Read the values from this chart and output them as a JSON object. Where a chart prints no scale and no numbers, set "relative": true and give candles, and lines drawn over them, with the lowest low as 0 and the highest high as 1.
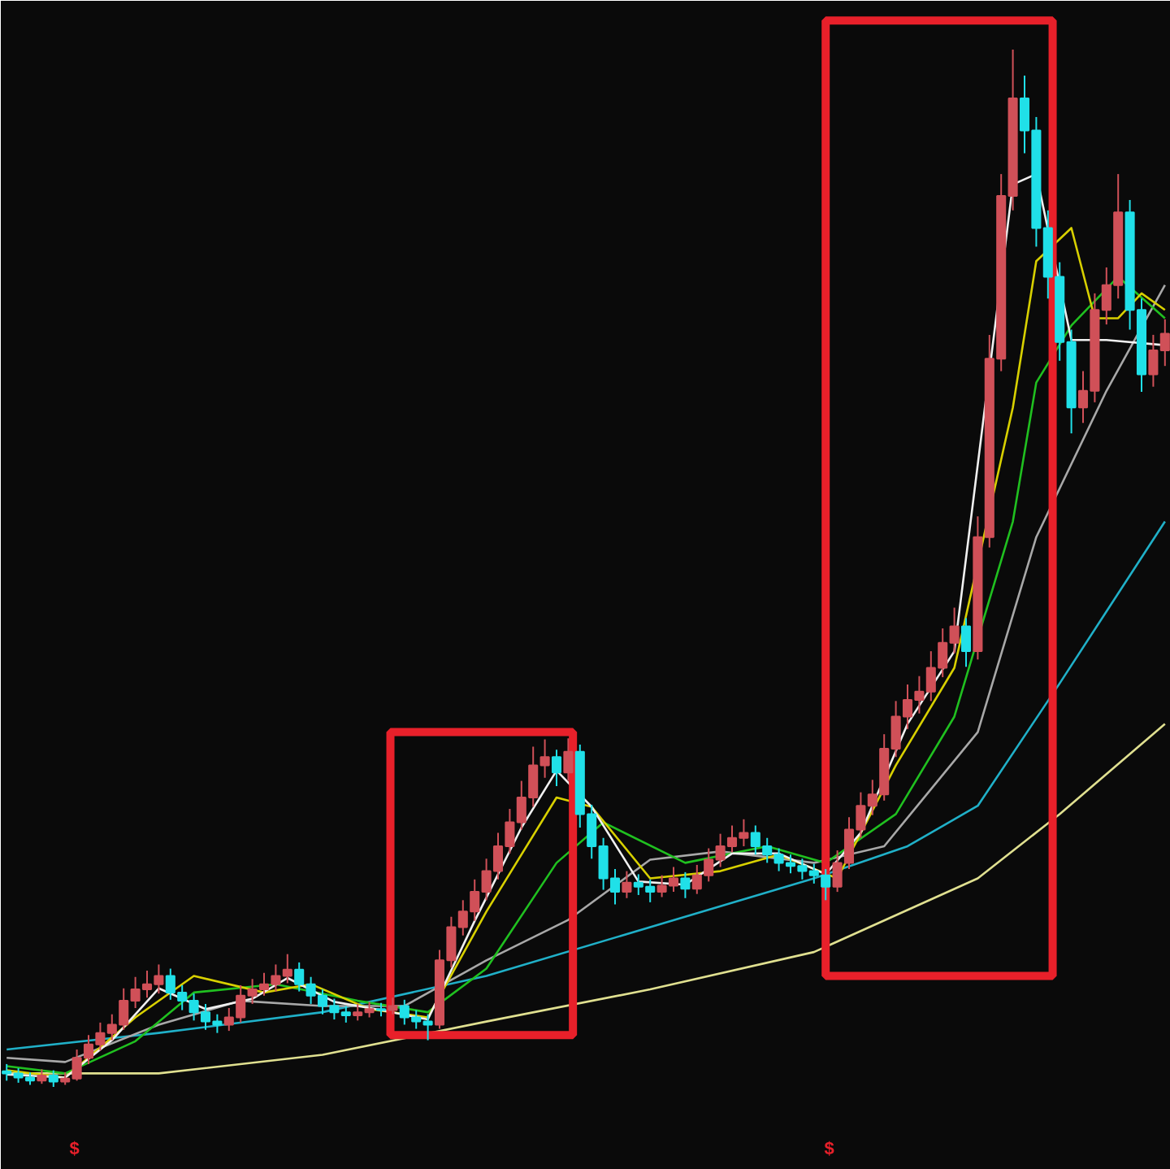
{
  "chart_data": {
    "type": "candlestick",
    "relative": true,
    "tick_labels": false,
    "categories": [
      null,
      null,
      null,
      null,
      null,
      null,
      null,
      null,
      null,
      null,
      null,
      null,
      null,
      null,
      null,
      null,
      null,
      null,
      null,
      null,
      null,
      null,
      null,
      null,
      null,
      null,
      null,
      null,
      null,
      null,
      null,
      null,
      null,
      null,
      null,
      null,
      null,
      null,
      null,
      null,
      null,
      null,
      null,
      null,
      null,
      null,
      null,
      null,
      null,
      null,
      null,
      null,
      null,
      null,
      null,
      null,
      null,
      null,
      null,
      null,
      null,
      null,
      null,
      null,
      null,
      null,
      null,
      null,
      null,
      null,
      null,
      null,
      null,
      null,
      null,
      null,
      null,
      null,
      null,
      null,
      null,
      null,
      null,
      null,
      null,
      null,
      null,
      null,
      null,
      null,
      null,
      null,
      null,
      null,
      null,
      null,
      null,
      null,
      null,
      null
    ],
    "ohlc": [
      [
        0.015,
        0.022,
        0.006,
        0.013
      ],
      [
        0.013,
        0.018,
        0.004,
        0.009
      ],
      [
        0.009,
        0.014,
        0.002,
        0.006
      ],
      [
        0.006,
        0.017,
        0.003,
        0.011
      ],
      [
        0.011,
        0.016,
        0.0,
        0.005
      ],
      [
        0.005,
        0.014,
        0.002,
        0.008
      ],
      [
        0.008,
        0.036,
        0.006,
        0.028
      ],
      [
        0.028,
        0.05,
        0.022,
        0.041
      ],
      [
        0.041,
        0.062,
        0.035,
        0.052
      ],
      [
        0.052,
        0.07,
        0.045,
        0.06
      ],
      [
        0.06,
        0.095,
        0.055,
        0.083
      ],
      [
        0.083,
        0.106,
        0.076,
        0.094
      ],
      [
        0.094,
        0.112,
        0.086,
        0.099
      ],
      [
        0.099,
        0.118,
        0.09,
        0.107
      ],
      [
        0.107,
        0.114,
        0.084,
        0.091
      ],
      [
        0.091,
        0.098,
        0.074,
        0.083
      ],
      [
        0.083,
        0.09,
        0.064,
        0.072
      ],
      [
        0.072,
        0.08,
        0.055,
        0.063
      ],
      [
        0.063,
        0.07,
        0.052,
        0.06
      ],
      [
        0.06,
        0.076,
        0.054,
        0.067
      ],
      [
        0.067,
        0.098,
        0.062,
        0.088
      ],
      [
        0.088,
        0.104,
        0.08,
        0.094
      ],
      [
        0.094,
        0.11,
        0.088,
        0.099
      ],
      [
        0.099,
        0.118,
        0.092,
        0.107
      ],
      [
        0.107,
        0.128,
        0.1,
        0.113
      ],
      [
        0.113,
        0.12,
        0.092,
        0.099
      ],
      [
        0.099,
        0.106,
        0.08,
        0.088
      ],
      [
        0.088,
        0.094,
        0.07,
        0.078
      ],
      [
        0.078,
        0.085,
        0.065,
        0.072
      ],
      [
        0.072,
        0.078,
        0.062,
        0.069
      ],
      [
        0.069,
        0.08,
        0.064,
        0.072
      ],
      [
        0.072,
        0.082,
        0.067,
        0.075
      ],
      [
        0.075,
        0.081,
        0.068,
        0.074
      ],
      [
        0.074,
        0.086,
        0.07,
        0.078
      ],
      [
        0.078,
        0.084,
        0.06,
        0.067
      ],
      [
        0.067,
        0.074,
        0.056,
        0.063
      ],
      [
        0.063,
        0.07,
        0.045,
        0.06
      ],
      [
        0.06,
        0.132,
        0.056,
        0.122
      ],
      [
        0.122,
        0.164,
        0.115,
        0.154
      ],
      [
        0.154,
        0.18,
        0.146,
        0.169
      ],
      [
        0.169,
        0.2,
        0.16,
        0.188
      ],
      [
        0.188,
        0.22,
        0.18,
        0.208
      ],
      [
        0.208,
        0.245,
        0.2,
        0.232
      ],
      [
        0.232,
        0.268,
        0.225,
        0.255
      ],
      [
        0.255,
        0.295,
        0.248,
        0.279
      ],
      [
        0.279,
        0.328,
        0.27,
        0.31
      ],
      [
        0.31,
        0.335,
        0.298,
        0.318
      ],
      [
        0.318,
        0.325,
        0.29,
        0.303
      ],
      [
        0.303,
        0.336,
        0.295,
        0.323
      ],
      [
        0.323,
        0.33,
        0.25,
        0.263
      ],
      [
        0.263,
        0.272,
        0.22,
        0.232
      ],
      [
        0.232,
        0.24,
        0.19,
        0.201
      ],
      [
        0.201,
        0.21,
        0.176,
        0.188
      ],
      [
        0.188,
        0.208,
        0.182,
        0.197
      ],
      [
        0.197,
        0.205,
        0.185,
        0.193
      ],
      [
        0.193,
        0.2,
        0.178,
        0.188
      ],
      [
        0.188,
        0.204,
        0.183,
        0.194
      ],
      [
        0.194,
        0.212,
        0.188,
        0.201
      ],
      [
        0.201,
        0.207,
        0.182,
        0.191
      ],
      [
        0.191,
        0.214,
        0.186,
        0.204
      ],
      [
        0.204,
        0.23,
        0.198,
        0.219
      ],
      [
        0.219,
        0.244,
        0.212,
        0.232
      ],
      [
        0.232,
        0.252,
        0.226,
        0.24
      ],
      [
        0.24,
        0.258,
        0.232,
        0.245
      ],
      [
        0.245,
        0.252,
        0.224,
        0.232
      ],
      [
        0.232,
        0.24,
        0.216,
        0.224
      ],
      [
        0.224,
        0.23,
        0.208,
        0.216
      ],
      [
        0.216,
        0.224,
        0.206,
        0.213
      ],
      [
        0.213,
        0.22,
        0.2,
        0.208
      ],
      [
        0.208,
        0.215,
        0.196,
        0.204
      ],
      [
        0.204,
        0.21,
        0.18,
        0.193
      ],
      [
        0.193,
        0.228,
        0.188,
        0.216
      ],
      [
        0.216,
        0.26,
        0.21,
        0.248
      ],
      [
        0.248,
        0.284,
        0.24,
        0.271
      ],
      [
        0.271,
        0.296,
        0.262,
        0.282
      ],
      [
        0.282,
        0.34,
        0.276,
        0.326
      ],
      [
        0.326,
        0.372,
        0.318,
        0.357
      ],
      [
        0.357,
        0.388,
        0.345,
        0.373
      ],
      [
        0.373,
        0.396,
        0.36,
        0.381
      ],
      [
        0.381,
        0.42,
        0.372,
        0.404
      ],
      [
        0.404,
        0.442,
        0.395,
        0.428
      ],
      [
        0.428,
        0.462,
        0.418,
        0.444
      ],
      [
        0.444,
        0.452,
        0.405,
        0.42
      ],
      [
        0.42,
        0.55,
        0.412,
        0.53
      ],
      [
        0.53,
        0.725,
        0.52,
        0.702
      ],
      [
        0.702,
        0.88,
        0.69,
        0.859
      ],
      [
        0.859,
        1.0,
        0.845,
        0.953
      ],
      [
        0.953,
        0.975,
        0.9,
        0.922
      ],
      [
        0.922,
        0.935,
        0.81,
        0.828
      ],
      [
        0.828,
        0.845,
        0.76,
        0.781
      ],
      [
        0.781,
        0.795,
        0.7,
        0.718
      ],
      [
        0.718,
        0.73,
        0.63,
        0.655
      ],
      [
        0.655,
        0.69,
        0.64,
        0.671
      ],
      [
        0.671,
        0.765,
        0.66,
        0.749
      ],
      [
        0.749,
        0.79,
        0.735,
        0.773
      ],
      [
        0.773,
        0.88,
        0.76,
        0.843
      ],
      [
        0.843,
        0.855,
        0.73,
        0.749
      ],
      [
        0.749,
        0.76,
        0.67,
        0.687
      ],
      [
        0.687,
        0.725,
        0.675,
        0.71
      ],
      [
        0.71,
        0.74,
        0.695,
        0.726
      ]
    ],
    "series": [
      {
        "type": "line",
        "color": "#e0e090",
        "values": [
          0.013,
          null,
          null,
          null,
          null,
          null,
          null,
          null,
          null,
          null,
          null,
          null,
          null,
          0.013,
          null,
          null,
          null,
          null,
          null,
          null,
          null,
          null,
          null,
          null,
          null,
          null,
          null,
          0.031,
          null,
          null,
          null,
          null,
          null,
          null,
          null,
          null,
          null,
          null,
          null,
          null,
          null,
          0.063,
          null,
          null,
          null,
          null,
          null,
          null,
          null,
          null,
          null,
          null,
          null,
          null,
          null,
          0.094,
          null,
          null,
          null,
          null,
          null,
          null,
          null,
          null,
          null,
          null,
          null,
          null,
          null,
          0.13,
          null,
          null,
          null,
          null,
          null,
          null,
          null,
          null,
          null,
          null,
          null,
          null,
          null,
          0.201,
          null,
          null,
          null,
          null,
          null,
          null,
          0.263,
          null,
          null,
          null,
          null,
          null,
          null,
          null,
          null,
          0.35
        ]
      },
      {
        "type": "line",
        "color": "#20b0c8",
        "values": [
          0.036,
          null,
          null,
          null,
          null,
          null,
          null,
          null,
          null,
          null,
          null,
          null,
          null,
          0.052,
          null,
          null,
          null,
          null,
          null,
          null,
          null,
          null,
          null,
          null,
          null,
          null,
          null,
          0.072,
          null,
          null,
          null,
          null,
          null,
          null,
          null,
          null,
          null,
          null,
          null,
          null,
          null,
          0.107,
          null,
          null,
          null,
          null,
          null,
          null,
          null,
          null,
          null,
          null,
          null,
          null,
          null,
          0.154,
          null,
          null,
          null,
          null,
          null,
          null,
          null,
          null,
          null,
          null,
          null,
          null,
          null,
          0.201,
          null,
          null,
          null,
          null,
          null,
          null,
          null,
          0.232,
          null,
          null,
          null,
          null,
          null,
          0.271,
          null,
          null,
          null,
          null,
          null,
          null,
          0.389,
          null,
          null,
          null,
          null,
          null,
          null,
          null,
          null,
          0.545
        ]
      },
      {
        "type": "line",
        "color": "#a8a8a8",
        "values": [
          0.028,
          null,
          null,
          null,
          null,
          0.024,
          null,
          null,
          null,
          null,
          null,
          null,
          null,
          0.06,
          null,
          null,
          null,
          null,
          null,
          null,
          0.083,
          null,
          null,
          null,
          null,
          null,
          null,
          0.078,
          null,
          null,
          null,
          null,
          null,
          null,
          0.078,
          null,
          null,
          null,
          null,
          null,
          null,
          0.122,
          null,
          null,
          null,
          null,
          null,
          null,
          0.161,
          null,
          null,
          null,
          null,
          null,
          null,
          0.219,
          null,
          null,
          null,
          null,
          null,
          0.227,
          null,
          null,
          null,
          null,
          null,
          null,
          null,
          0.216,
          null,
          null,
          null,
          null,
          null,
          0.232,
          null,
          null,
          null,
          null,
          null,
          null,
          null,
          0.342,
          null,
          null,
          null,
          null,
          0.53,
          null,
          null,
          null,
          null,
          null,
          0.671,
          null,
          null,
          null,
          null,
          0.773
        ]
      },
      {
        "type": "line",
        "color": "#20c020",
        "values": [
          0.02,
          null,
          null,
          null,
          null,
          0.013,
          null,
          null,
          null,
          null,
          null,
          0.044,
          null,
          null,
          null,
          null,
          0.091,
          null,
          null,
          null,
          null,
          null,
          null,
          0.099,
          null,
          null,
          null,
          null,
          null,
          null,
          0.083,
          null,
          null,
          null,
          null,
          null,
          0.072,
          null,
          null,
          null,
          null,
          0.114,
          null,
          null,
          null,
          null,
          null,
          0.216,
          null,
          null,
          null,
          0.255,
          null,
          null,
          null,
          null,
          null,
          null,
          0.216,
          null,
          null,
          null,
          null,
          null,
          null,
          0.232,
          null,
          null,
          null,
          null,
          0.216,
          null,
          null,
          null,
          null,
          null,
          0.263,
          null,
          null,
          null,
          null,
          0.357,
          null,
          null,
          null,
          null,
          0.545,
          null,
          0.679,
          null,
          null,
          0.734,
          null,
          null,
          null,
          0.781,
          null,
          null,
          null,
          0.741
        ]
      },
      {
        "type": "line",
        "color": "#d8d000",
        "values": [
          0.016,
          null,
          null,
          null,
          null,
          0.009,
          null,
          null,
          null,
          null,
          null,
          0.067,
          null,
          null,
          null,
          null,
          0.107,
          null,
          null,
          null,
          null,
          null,
          0.091,
          null,
          null,
          null,
          0.099,
          null,
          null,
          null,
          null,
          0.075,
          null,
          null,
          null,
          null,
          0.067,
          null,
          null,
          null,
          null,
          0.169,
          null,
          null,
          null,
          null,
          null,
          0.279,
          null,
          null,
          0.27,
          null,
          null,
          null,
          null,
          0.201,
          null,
          null,
          null,
          null,
          null,
          0.208,
          null,
          null,
          null,
          null,
          0.224,
          null,
          null,
          null,
          null,
          0.201,
          null,
          null,
          null,
          null,
          0.31,
          null,
          null,
          null,
          null,
          0.404,
          null,
          null,
          null,
          null,
          0.655,
          null,
          0.796,
          null,
          null,
          0.828,
          null,
          0.741,
          null,
          0.741,
          null,
          0.765,
          null,
          0.749
        ]
      },
      {
        "type": "line",
        "color": "#f0f0f0",
        "values": [
          0.012,
          null,
          null,
          null,
          null,
          0.009,
          null,
          null,
          null,
          0.045,
          null,
          null,
          null,
          0.095,
          null,
          null,
          null,
          0.075,
          null,
          null,
          null,
          0.085,
          null,
          null,
          0.105,
          null,
          null,
          null,
          0.082,
          null,
          null,
          null,
          0.074,
          null,
          null,
          null,
          0.065,
          null,
          null,
          null,
          0.16,
          null,
          null,
          null,
          0.25,
          null,
          null,
          0.305,
          null,
          null,
          0.27,
          null,
          null,
          null,
          0.198,
          null,
          null,
          null,
          0.195,
          null,
          null,
          null,
          0.225,
          null,
          null,
          null,
          0.225,
          null,
          null,
          null,
          0.205,
          null,
          null,
          0.245,
          null,
          null,
          null,
          0.35,
          null,
          null,
          null,
          0.42,
          null,
          null,
          null,
          null,
          0.87,
          null,
          0.88,
          null,
          null,
          0.72,
          null,
          null,
          0.72,
          null,
          null,
          null,
          null,
          0.715
        ]
      }
    ],
    "annotations": [
      "$",
      "$"
    ]
  }
}
